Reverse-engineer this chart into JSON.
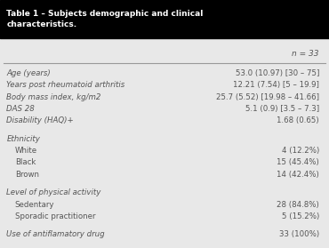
{
  "title": "Table 1 – Subjects demographic and clinical\ncharacteristics.",
  "header_col": "n = 33",
  "bg_header": "#000000",
  "bg_body": "#e8e8e8",
  "header_text_color": "#ffffff",
  "body_text_color": "#555555",
  "separator_color": "#999999",
  "rows": [
    {
      "label": "Age (years)",
      "value": "53.0 (10.97) [30 – 75]",
      "indent": 0,
      "italic": true,
      "spacer_before": false
    },
    {
      "label": "Years post rheumatoid arthritis",
      "value": "12.21 (7.54) [5 – 19.9]",
      "indent": 0,
      "italic": true,
      "spacer_before": false
    },
    {
      "label": "Body mass index, kg/m2",
      "value": "25.7 (5.52) [19.98 – 41.66]",
      "indent": 0,
      "italic": true,
      "spacer_before": false
    },
    {
      "label": "DAS 28",
      "value": "5.1 (0.9) [3.5 – 7.3]",
      "indent": 0,
      "italic": true,
      "spacer_before": false
    },
    {
      "label": "Disability (HAQ)+",
      "value": "1.68 (0.65)",
      "indent": 0,
      "italic": true,
      "spacer_before": false
    },
    {
      "label": "Ethnicity",
      "value": "",
      "indent": 0,
      "italic": true,
      "spacer_before": true
    },
    {
      "label": "White",
      "value": "4 (12.2%)",
      "indent": 1,
      "italic": false,
      "spacer_before": false
    },
    {
      "label": "Black",
      "value": "15 (45.4%)",
      "indent": 1,
      "italic": false,
      "spacer_before": false
    },
    {
      "label": "Brown",
      "value": "14 (42.4%)",
      "indent": 1,
      "italic": false,
      "spacer_before": false
    },
    {
      "label": "Level of physical activity",
      "value": "",
      "indent": 0,
      "italic": true,
      "spacer_before": true
    },
    {
      "label": "Sedentary",
      "value": "28 (84.8%)",
      "indent": 1,
      "italic": false,
      "spacer_before": false
    },
    {
      "label": "Sporadic practitioner",
      "value": "5 (15.2%)",
      "indent": 1,
      "italic": false,
      "spacer_before": false
    },
    {
      "label": "Use of antiflamatory drug",
      "value": "33 (100%)",
      "indent": 0,
      "italic": true,
      "spacer_before": true
    }
  ],
  "figsize": [
    3.7,
    2.79
  ],
  "dpi": 100
}
